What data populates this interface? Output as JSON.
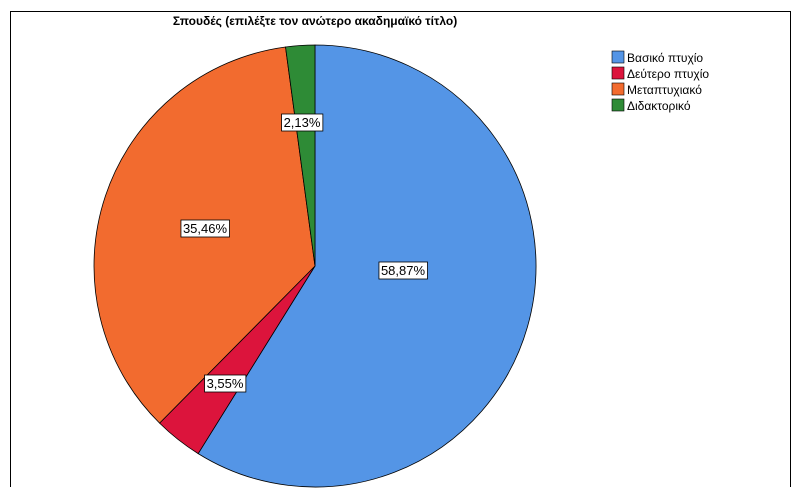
{
  "chart_data": {
    "type": "pie",
    "title": "Σπουδές (επιλέξτε τον ανώτερο ακαδημαϊκό τίτλο)",
    "categories": [
      "Βασικό πτυχίο",
      "Δεύτερο πτυχίο",
      "Μεταπτυχιακό",
      "Διδακτορικό"
    ],
    "values": [
      58.87,
      3.55,
      35.46,
      2.13
    ],
    "labels": [
      "58,87%",
      "3,55%",
      "35,46%",
      "2,13%"
    ],
    "colors": [
      "#5495e6",
      "#dc143c",
      "#f26b2f",
      "#2e8b36"
    ],
    "legend_position": "top-right",
    "start_angle": "top",
    "direction": "clockwise"
  }
}
